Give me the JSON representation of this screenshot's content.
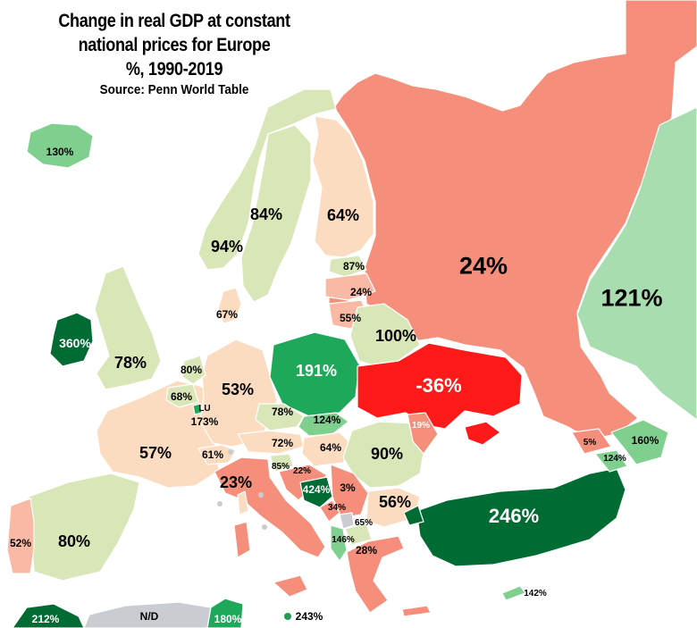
{
  "title": {
    "lines": [
      "Change in real GDP at constant",
      "national prices for Europe",
      "%, 1990-2019"
    ],
    "source": "Source: Penn World Table"
  },
  "colors": {
    "sea": "#ffffff",
    "no_data": "#c9cdd2",
    "deep_red": "#ff1a1a",
    "salmon": "#f58f7c",
    "light_salmon": "#f9b9a4",
    "peach": "#fcdcc1",
    "light_green": "#d9e6b7",
    "mint": "#a8ddb0",
    "green": "#7fcf8e",
    "mid_green": "#1ea85a",
    "dark_green": "#006b33",
    "border": "#ffffff"
  },
  "countries": [
    {
      "name": "Russia",
      "value": "24%"
    },
    {
      "name": "Ukraine",
      "value": "-36%"
    },
    {
      "name": "Kazakhstan",
      "value": "121%"
    },
    {
      "name": "Turkey",
      "value": "246%"
    },
    {
      "name": "Poland",
      "value": "191%"
    },
    {
      "name": "Belarus",
      "value": "100%"
    },
    {
      "name": "Romania",
      "value": "90%"
    },
    {
      "name": "Finland",
      "value": "64%"
    },
    {
      "name": "Sweden",
      "value": "84%"
    },
    {
      "name": "Norway",
      "value": "94%"
    },
    {
      "name": "United Kingdom",
      "value": "78%"
    },
    {
      "name": "Ireland",
      "value": "360%"
    },
    {
      "name": "Iceland",
      "value": "130%"
    },
    {
      "name": "France",
      "value": "57%"
    },
    {
      "name": "Germany",
      "value": "53%"
    },
    {
      "name": "Spain",
      "value": "80%"
    },
    {
      "name": "Portugal",
      "value": "52%"
    },
    {
      "name": "Italy",
      "value": "23%"
    },
    {
      "name": "Bulgaria",
      "value": "56%"
    },
    {
      "name": "Greece",
      "value": "28%"
    },
    {
      "name": "Estonia",
      "value": "87%"
    },
    {
      "name": "Latvia",
      "value": "24%"
    },
    {
      "name": "Lithuania",
      "value": "55%"
    },
    {
      "name": "Denmark",
      "value": "67%"
    },
    {
      "name": "Netherlands",
      "value": "80%"
    },
    {
      "name": "Belgium",
      "value": "68%"
    },
    {
      "name": "Luxembourg",
      "abbr": "LU",
      "value": "173%"
    },
    {
      "name": "Czechia",
      "value": "78%"
    },
    {
      "name": "Slovakia",
      "value": "124%"
    },
    {
      "name": "Austria",
      "value": "72%"
    },
    {
      "name": "Hungary",
      "value": "64%"
    },
    {
      "name": "Switzerland",
      "value": "61%"
    },
    {
      "name": "Slovenia",
      "value": "85%"
    },
    {
      "name": "Croatia",
      "value": "22%"
    },
    {
      "name": "Bosnia and Herzegovina",
      "value": "424%"
    },
    {
      "name": "Serbia",
      "value": "3%"
    },
    {
      "name": "Montenegro",
      "value": "34%"
    },
    {
      "name": "North Macedonia",
      "value": "65%"
    },
    {
      "name": "Albania",
      "value": "146%"
    },
    {
      "name": "Moldova",
      "value": "19%"
    },
    {
      "name": "Georgia",
      "value": "5%"
    },
    {
      "name": "Armenia",
      "value": "124%"
    },
    {
      "name": "Azerbaijan",
      "value": "160%"
    },
    {
      "name": "Cyprus",
      "value": "142%"
    },
    {
      "name": "Morocco",
      "value": "212%"
    },
    {
      "name": "Algeria",
      "value": "N/D"
    },
    {
      "name": "Tunisia",
      "value": "180%"
    },
    {
      "name": "Malta",
      "value": "243%"
    }
  ]
}
